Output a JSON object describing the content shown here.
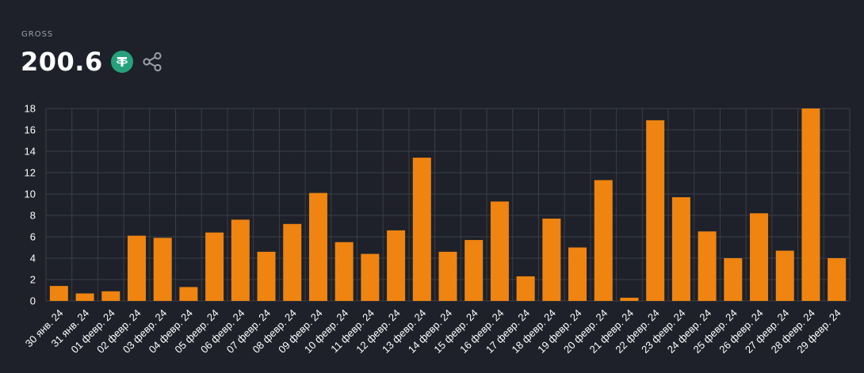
{
  "header": {
    "label": "GROSS",
    "total": "200.6",
    "currency_icon": "tether-icon",
    "share_icon": "share-icon"
  },
  "colors": {
    "background": "#1e2129",
    "bar": "#ef8410",
    "grid": "#3a3e48",
    "currency": "#26a17b"
  },
  "chart_data": {
    "type": "bar",
    "categories": [
      "30 янв. 24",
      "31 янв. 24",
      "01 февр. 24",
      "02 февр. 24",
      "03 февр. 24",
      "04 февр. 24",
      "05 февр. 24",
      "06 февр. 24",
      "07 февр. 24",
      "08 февр. 24",
      "09 февр. 24",
      "10 февр. 24",
      "11 февр. 24",
      "12 февр. 24",
      "13 февр. 24",
      "14 февр. 24",
      "15 февр. 24",
      "16 февр. 24",
      "17 февр. 24",
      "18 февр. 24",
      "19 февр. 24",
      "20 февр. 24",
      "21 февр. 24",
      "22 февр. 24",
      "23 февр. 24",
      "24 февр. 24",
      "25 февр. 24",
      "26 февр. 24",
      "27 февр. 24",
      "28 февр. 24",
      "29 февр. 24"
    ],
    "values": [
      1.4,
      0.7,
      0.9,
      6.1,
      5.9,
      1.3,
      6.4,
      7.6,
      4.6,
      7.2,
      10.1,
      5.5,
      4.4,
      6.6,
      13.4,
      4.6,
      5.7,
      9.3,
      2.3,
      7.7,
      5.0,
      11.3,
      0.3,
      16.9,
      9.7,
      6.5,
      4.0,
      8.2,
      4.7,
      18.0,
      4.0
    ],
    "yticks": [
      "0",
      "2",
      "4",
      "6",
      "8",
      "10",
      "12",
      "14",
      "16",
      "18"
    ],
    "ylim": [
      0,
      18
    ],
    "grid": true,
    "title": "",
    "xlabel": "",
    "ylabel": ""
  }
}
